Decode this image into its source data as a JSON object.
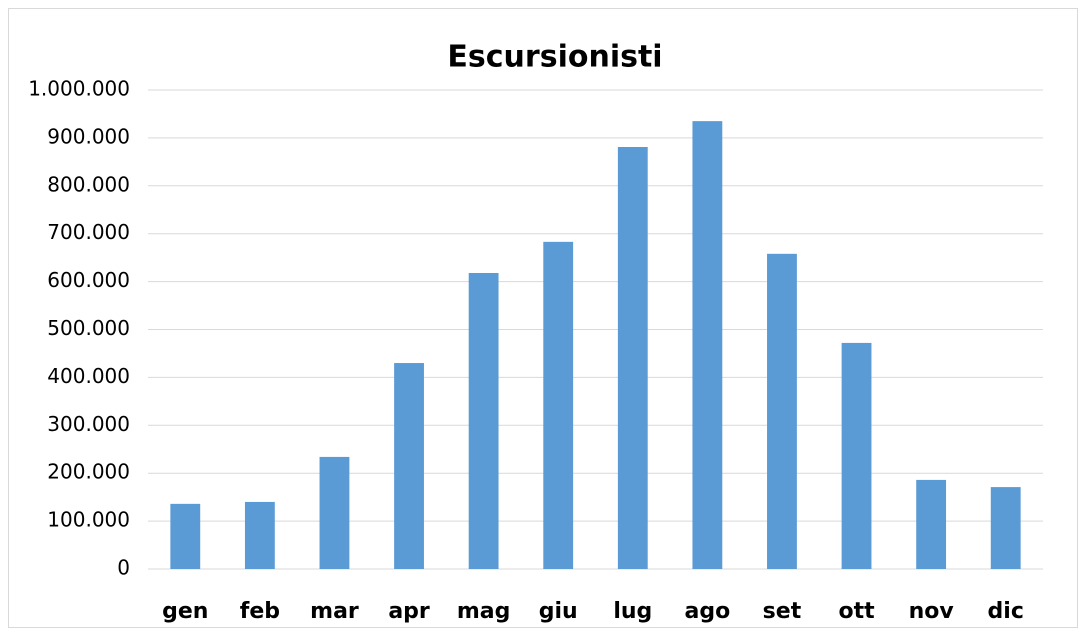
{
  "chart_data": {
    "type": "bar",
    "title": "Escursionisti",
    "categories": [
      "gen",
      "feb",
      "mar",
      "apr",
      "mag",
      "giu",
      "lug",
      "ago",
      "set",
      "ott",
      "nov",
      "dic"
    ],
    "values": [
      136000,
      140000,
      234000,
      430000,
      618000,
      683000,
      881000,
      935000,
      658000,
      472000,
      186000,
      171000
    ],
    "color": "#5b9bd5",
    "ylim": [
      0,
      1000000
    ],
    "yticks": [
      0,
      {
        "value": 100000,
        "label": "100.000"
      },
      {
        "value": 200000,
        "label": "200.000"
      },
      {
        "value": 300000,
        "label": "300.000"
      },
      {
        "value": 400000,
        "label": "400.000"
      },
      {
        "value": 500000,
        "label": "500.000"
      },
      {
        "value": 600000,
        "label": "600.000"
      },
      {
        "value": 700000,
        "label": "700.000"
      },
      {
        "value": 800000,
        "label": "800.000"
      },
      {
        "value": 900000,
        "label": "900.000"
      },
      {
        "value": 1000000,
        "label": "1.000.000"
      }
    ],
    "grid": true
  }
}
